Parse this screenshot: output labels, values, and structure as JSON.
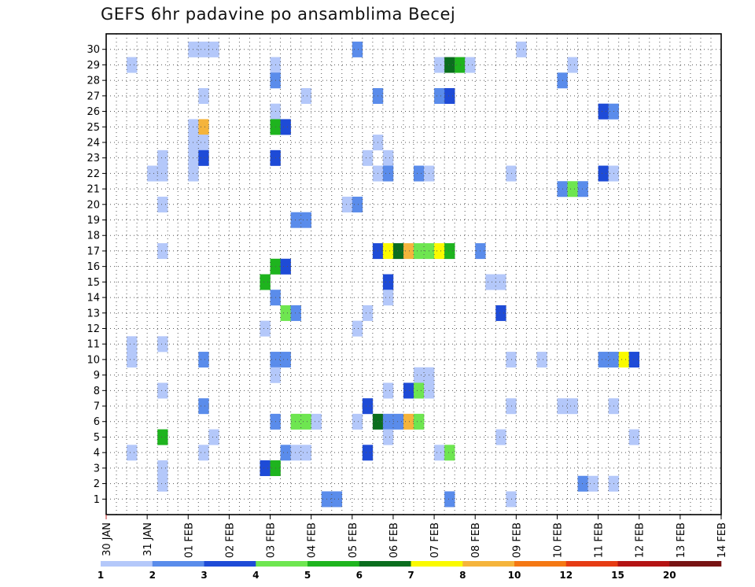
{
  "chart_data": {
    "type": "heatmap",
    "title": "GEFS 6hr padavine po ansamblima Becej",
    "xlabel": "",
    "ylabel": "",
    "x_ticks": [
      "30 JAN",
      "31 JAN",
      "01 FEB",
      "02 FEB",
      "03 FEB",
      "04 FEB",
      "05 FEB",
      "06 FEB",
      "07 FEB",
      "08 FEB",
      "09 FEB",
      "10 FEB",
      "11 FEB",
      "12 FEB",
      "13 FEB",
      "14 FEB"
    ],
    "y_ticks": [
      "1",
      "2",
      "3",
      "4",
      "5",
      "6",
      "7",
      "8",
      "9",
      "10",
      "11",
      "12",
      "13",
      "14",
      "15",
      "16",
      "17",
      "18",
      "19",
      "20",
      "21",
      "22",
      "23",
      "24",
      "25",
      "26",
      "27",
      "28",
      "29",
      "30"
    ],
    "time_step_hours": 6,
    "grid": true,
    "colorbar": {
      "labels": [
        "1",
        "2",
        "3",
        "4",
        "5",
        "6",
        "7",
        "8",
        "10",
        "12",
        "15",
        "20"
      ],
      "colors": [
        "#b4c8fa",
        "#5a8ceb",
        "#1e4bd7",
        "#6ee650",
        "#1eb41e",
        "#0a6e1e",
        "#fafa00",
        "#f5b43c",
        "#f57814",
        "#e63c14",
        "#b41414",
        "#781414"
      ]
    },
    "cells": [
      [
        2,
        29,
        1
      ],
      [
        2,
        11,
        1
      ],
      [
        2,
        10,
        1
      ],
      [
        2,
        4,
        1
      ],
      [
        4,
        22,
        1
      ],
      [
        5,
        23,
        1
      ],
      [
        5,
        22,
        1
      ],
      [
        5,
        20,
        1
      ],
      [
        5,
        17,
        1
      ],
      [
        5,
        11,
        1
      ],
      [
        5,
        8,
        1
      ],
      [
        5,
        5,
        5
      ],
      [
        5,
        3,
        1
      ],
      [
        5,
        2,
        1
      ],
      [
        8,
        30,
        1
      ],
      [
        8,
        25,
        1
      ],
      [
        8,
        24,
        1
      ],
      [
        8,
        23,
        1
      ],
      [
        8,
        22,
        1
      ],
      [
        9,
        30,
        1
      ],
      [
        9,
        27,
        1
      ],
      [
        9,
        25,
        8
      ],
      [
        9,
        24,
        1
      ],
      [
        9,
        23,
        3
      ],
      [
        9,
        10,
        2
      ],
      [
        9,
        7,
        2
      ],
      [
        9,
        4,
        1
      ],
      [
        10,
        30,
        1
      ],
      [
        10,
        5,
        1
      ],
      [
        15,
        15,
        5
      ],
      [
        15,
        12,
        1
      ],
      [
        15,
        3,
        3
      ],
      [
        16,
        29,
        1
      ],
      [
        16,
        28,
        2
      ],
      [
        16,
        26,
        1
      ],
      [
        16,
        25,
        5
      ],
      [
        16,
        23,
        3
      ],
      [
        16,
        16,
        5
      ],
      [
        16,
        14,
        2
      ],
      [
        16,
        10,
        2
      ],
      [
        16,
        9,
        1
      ],
      [
        16,
        6,
        2
      ],
      [
        16,
        3,
        5
      ],
      [
        17,
        25,
        3
      ],
      [
        17,
        16,
        3
      ],
      [
        17,
        13,
        4
      ],
      [
        17,
        10,
        2
      ],
      [
        17,
        4,
        2
      ],
      [
        18,
        19,
        2
      ],
      [
        18,
        13,
        2
      ],
      [
        18,
        6,
        4
      ],
      [
        18,
        4,
        1
      ],
      [
        19,
        27,
        1
      ],
      [
        19,
        19,
        2
      ],
      [
        19,
        6,
        4
      ],
      [
        19,
        4,
        1
      ],
      [
        20,
        6,
        1
      ],
      [
        21,
        1,
        2
      ],
      [
        22,
        1,
        2
      ],
      [
        23,
        20,
        1
      ],
      [
        24,
        30,
        2
      ],
      [
        24,
        20,
        2
      ],
      [
        24,
        12,
        1
      ],
      [
        24,
        6,
        1
      ],
      [
        25,
        23,
        1
      ],
      [
        25,
        13,
        1
      ],
      [
        25,
        7,
        3
      ],
      [
        25,
        4,
        3
      ],
      [
        26,
        27,
        2
      ],
      [
        26,
        24,
        1
      ],
      [
        26,
        22,
        1
      ],
      [
        26,
        17,
        3
      ],
      [
        26,
        6,
        6
      ],
      [
        27,
        23,
        1
      ],
      [
        27,
        22,
        2
      ],
      [
        27,
        17,
        7
      ],
      [
        27,
        15,
        3
      ],
      [
        27,
        14,
        1
      ],
      [
        27,
        8,
        1
      ],
      [
        27,
        6,
        2
      ],
      [
        27,
        5,
        1
      ],
      [
        28,
        17,
        6
      ],
      [
        28,
        6,
        2
      ],
      [
        29,
        17,
        8
      ],
      [
        29,
        8,
        3
      ],
      [
        29,
        6,
        8
      ],
      [
        30,
        22,
        2
      ],
      [
        30,
        17,
        4
      ],
      [
        30,
        9,
        1
      ],
      [
        30,
        8,
        4
      ],
      [
        30,
        6,
        4
      ],
      [
        31,
        22,
        1
      ],
      [
        31,
        17,
        4
      ],
      [
        31,
        9,
        1
      ],
      [
        31,
        8,
        1
      ],
      [
        32,
        29,
        1
      ],
      [
        32,
        27,
        2
      ],
      [
        32,
        17,
        7
      ],
      [
        32,
        4,
        1
      ],
      [
        33,
        29,
        6
      ],
      [
        33,
        27,
        3
      ],
      [
        33,
        17,
        5
      ],
      [
        33,
        4,
        4
      ],
      [
        33,
        1,
        2
      ],
      [
        34,
        29,
        5
      ],
      [
        35,
        29,
        1
      ],
      [
        36,
        17,
        2
      ],
      [
        37,
        15,
        1
      ],
      [
        38,
        15,
        1
      ],
      [
        38,
        13,
        3
      ],
      [
        38,
        5,
        1
      ],
      [
        39,
        22,
        1
      ],
      [
        39,
        10,
        1
      ],
      [
        39,
        7,
        1
      ],
      [
        39,
        1,
        1
      ],
      [
        40,
        30,
        1
      ],
      [
        42,
        10,
        1
      ],
      [
        44,
        28,
        2
      ],
      [
        44,
        21,
        2
      ],
      [
        44,
        7,
        1
      ],
      [
        45,
        29,
        1
      ],
      [
        45,
        21,
        4
      ],
      [
        45,
        7,
        1
      ],
      [
        46,
        21,
        2
      ],
      [
        46,
        2,
        2
      ],
      [
        47,
        2,
        1
      ],
      [
        48,
        26,
        3
      ],
      [
        48,
        22,
        3
      ],
      [
        48,
        10,
        2
      ],
      [
        49,
        26,
        2
      ],
      [
        49,
        22,
        1
      ],
      [
        49,
        10,
        2
      ],
      [
        49,
        7,
        1
      ],
      [
        49,
        2,
        1
      ],
      [
        50,
        10,
        7
      ],
      [
        51,
        10,
        3
      ],
      [
        51,
        5,
        1
      ]
    ]
  }
}
